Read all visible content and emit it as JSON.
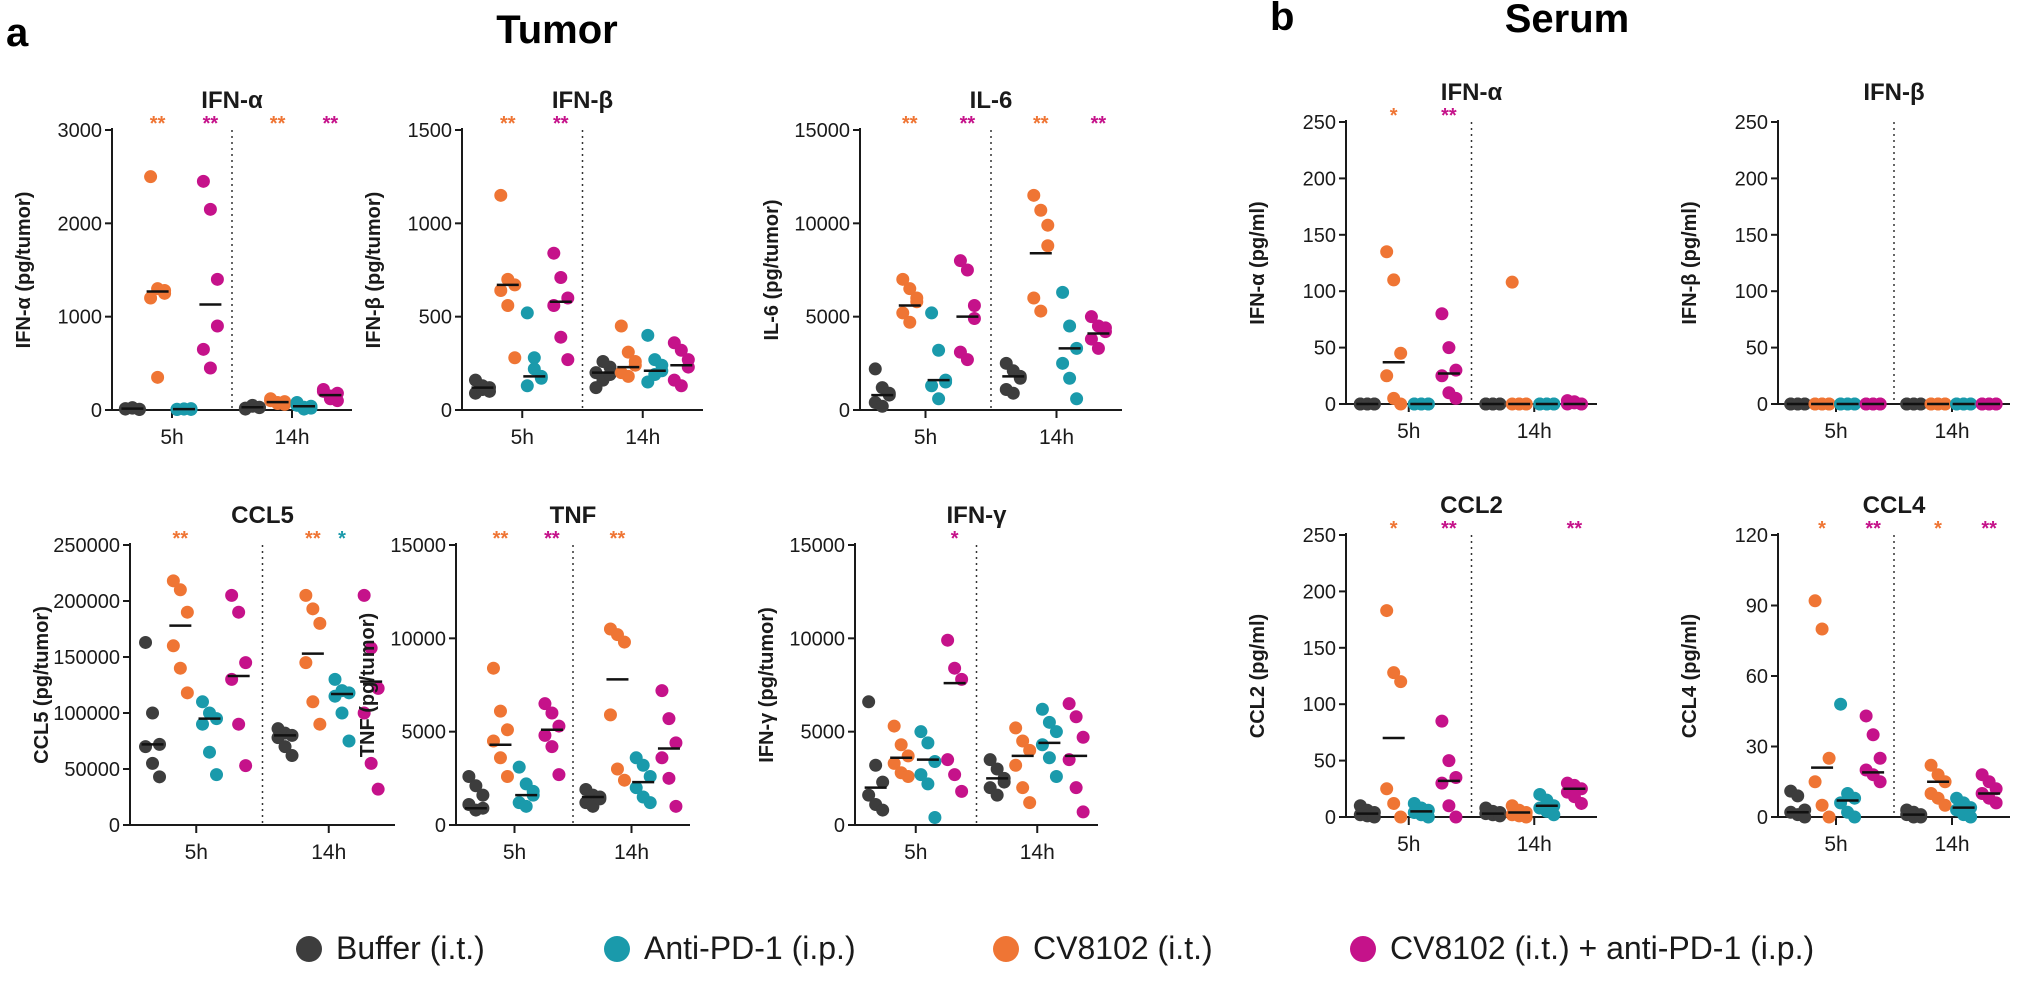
{
  "panel_letters": {
    "a": "a",
    "b": "b"
  },
  "section_titles": {
    "tumor": "Tumor",
    "serum": "Serum"
  },
  "groups": [
    {
      "key": "buffer",
      "name": "Buffer (i.t.)",
      "color": "#3d3d3d"
    },
    {
      "key": "antipd1",
      "name": "Anti-PD-1 (i.p.)",
      "color": "#1a9aab"
    },
    {
      "key": "cv8102",
      "name": "CV8102 (i.t.)",
      "color": "#ef7534"
    },
    {
      "key": "combo",
      "name": "CV8102 (i.t.) + anti-PD-1 (i.p.)",
      "color": "#c5128a"
    }
  ],
  "chart_data": [
    {
      "type": "scatter",
      "section": "Tumor",
      "title": "IFN-α",
      "ylabel": "IFN-α (pg/tumor)",
      "ylim": [
        0,
        3000
      ],
      "yticks": [
        "0",
        "1000",
        "2000",
        "3000"
      ],
      "xgroups": [
        "5h",
        "14h"
      ],
      "series": {
        "5h": {
          "buffer": [
            10,
            20,
            5,
            15,
            25,
            8
          ],
          "cv8102": [
            2500,
            1300,
            1250,
            1200,
            350,
            1280
          ],
          "antipd1": [
            5,
            10,
            15,
            8,
            12,
            6
          ],
          "combo": [
            2450,
            2150,
            900,
            650,
            450,
            1400
          ]
        },
        "14h": {
          "buffer": [
            20,
            40,
            30,
            10,
            50,
            25
          ],
          "cv8102": [
            100,
            80,
            60,
            120,
            70,
            90
          ],
          "antipd1": [
            50,
            30,
            20,
            80,
            10,
            40
          ],
          "combo": [
            200,
            150,
            100,
            220,
            120,
            180
          ]
        }
      },
      "means": {
        "5h": {
          "buffer": 15,
          "cv8102": 1270,
          "antipd1": 10,
          "combo": 1130
        },
        "14h": {
          "buffer": 30,
          "cv8102": 85,
          "antipd1": 40,
          "combo": 160
        }
      },
      "significance": {
        "5h": {
          "cv8102": "**",
          "combo": "**"
        },
        "14h": {
          "cv8102": "**",
          "combo": "**"
        }
      }
    },
    {
      "type": "scatter",
      "section": "Tumor",
      "title": "IFN-β",
      "ylabel": "IFN-β (pg/tumor)",
      "ylim": [
        0,
        1500
      ],
      "yticks": [
        "0",
        "500",
        "1000",
        "1500"
      ],
      "xgroups": [
        "5h",
        "14h"
      ],
      "series": {
        "5h": {
          "buffer": [
            90,
            110,
            120,
            160,
            130,
            100
          ],
          "cv8102": [
            1150,
            700,
            670,
            640,
            560,
            280
          ],
          "antipd1": [
            520,
            280,
            170,
            130,
            220,
            180
          ],
          "combo": [
            840,
            710,
            600,
            560,
            390,
            270
          ]
        },
        "14h": {
          "buffer": [
            200,
            160,
            230,
            120,
            260,
            190
          ],
          "cv8102": [
            450,
            310,
            240,
            200,
            180,
            260
          ],
          "antipd1": [
            400,
            270,
            210,
            150,
            190,
            240
          ],
          "combo": [
            360,
            320,
            230,
            160,
            130,
            270
          ]
        }
      },
      "means": {
        "5h": {
          "buffer": 120,
          "cv8102": 670,
          "antipd1": 180,
          "combo": 580
        },
        "14h": {
          "buffer": 200,
          "cv8102": 230,
          "antipd1": 210,
          "combo": 240
        }
      },
      "significance": {
        "5h": {
          "cv8102": "**",
          "combo": "**"
        },
        "14h": {}
      }
    },
    {
      "type": "scatter",
      "section": "Tumor",
      "title": "IL-6",
      "ylabel": "IL-6 (pg/tumor)",
      "ylim": [
        0,
        15000
      ],
      "yticks": [
        "0",
        "5000",
        "10000",
        "15000"
      ],
      "xgroups": [
        "5h",
        "14h"
      ],
      "series": {
        "5h": {
          "buffer": [
            2200,
            1200,
            800,
            400,
            200,
            900
          ],
          "cv8102": [
            7000,
            6500,
            5800,
            5200,
            4700,
            6000
          ],
          "antipd1": [
            5200,
            3200,
            1600,
            1300,
            600,
            1500
          ],
          "combo": [
            8000,
            7500,
            4900,
            3100,
            2700,
            5600
          ]
        },
        "14h": {
          "buffer": [
            2500,
            2100,
            1700,
            1100,
            900,
            1800
          ],
          "cv8102": [
            11500,
            10700,
            9900,
            6000,
            5300,
            8800
          ],
          "antipd1": [
            6300,
            4500,
            3300,
            2500,
            1700,
            600
          ],
          "combo": [
            5000,
            4500,
            4200,
            3800,
            3300,
            4400
          ]
        }
      },
      "means": {
        "5h": {
          "buffer": 800,
          "cv8102": 5600,
          "antipd1": 1600,
          "combo": 5000
        },
        "14h": {
          "buffer": 1800,
          "cv8102": 8400,
          "antipd1": 3300,
          "combo": 4100
        }
      },
      "significance": {
        "5h": {
          "cv8102": "**",
          "combo": "**"
        },
        "14h": {
          "cv8102": "**",
          "combo": "**"
        }
      }
    },
    {
      "type": "scatter",
      "section": "Tumor",
      "title": "CCL5",
      "ylabel": "CCL5 (pg/tumor)",
      "ylim": [
        0,
        250000
      ],
      "yticks": [
        "0",
        "50000",
        "100000",
        "150000",
        "200000",
        "250000"
      ],
      "xgroups": [
        "5h",
        "14h"
      ],
      "series": {
        "5h": {
          "buffer": [
            163000,
            100000,
            72000,
            70000,
            55000,
            43000
          ],
          "cv8102": [
            218000,
            210000,
            190000,
            160000,
            140000,
            118000
          ],
          "antipd1": [
            110000,
            100000,
            95000,
            90000,
            65000,
            45000
          ],
          "combo": [
            205000,
            190000,
            145000,
            130000,
            90000,
            53000
          ]
        },
        "14h": {
          "buffer": [
            86000,
            82000,
            80000,
            78000,
            70000,
            62000
          ],
          "cv8102": [
            205000,
            193000,
            180000,
            145000,
            110000,
            90000
          ],
          "antipd1": [
            130000,
            120000,
            118000,
            115000,
            100000,
            75000
          ],
          "combo": [
            205000,
            158000,
            122000,
            100000,
            55000,
            32000
          ]
        }
      },
      "means": {
        "5h": {
          "buffer": 72000,
          "cv8102": 178000,
          "antipd1": 95000,
          "combo": 133000
        },
        "14h": {
          "buffer": 80000,
          "cv8102": 153000,
          "antipd1": 117000,
          "combo": 128000
        }
      },
      "significance": {
        "5h": {
          "cv8102": "**"
        },
        "14h": {
          "cv8102": "**",
          "antipd1": "*"
        }
      }
    },
    {
      "type": "scatter",
      "section": "Tumor",
      "title": "TNF",
      "ylabel": "TNF (pg/tumor)",
      "ylim": [
        0,
        15000
      ],
      "yticks": [
        "0",
        "5000",
        "10000",
        "15000"
      ],
      "xgroups": [
        "5h",
        "14h"
      ],
      "series": {
        "5h": {
          "buffer": [
            2600,
            2100,
            1600,
            1100,
            800,
            900
          ],
          "cv8102": [
            8400,
            6100,
            5100,
            4500,
            3600,
            2600
          ],
          "antipd1": [
            3100,
            2200,
            1600,
            1200,
            1000,
            1800
          ],
          "combo": [
            6500,
            6000,
            5300,
            4800,
            4200,
            2700
          ]
        },
        "14h": {
          "buffer": [
            1900,
            1600,
            1500,
            1200,
            1000,
            1400
          ],
          "cv8102": [
            10500,
            10200,
            9800,
            5900,
            3000,
            2400
          ],
          "antipd1": [
            3600,
            3200,
            2600,
            2000,
            1500,
            1200
          ],
          "combo": [
            7200,
            5700,
            4400,
            3600,
            2500,
            1000
          ]
        }
      },
      "means": {
        "5h": {
          "buffer": 900,
          "cv8102": 4300,
          "antipd1": 1600,
          "combo": 5100
        },
        "14h": {
          "buffer": 1500,
          "cv8102": 7800,
          "antipd1": 2300,
          "combo": 4100
        }
      },
      "significance": {
        "5h": {
          "cv8102": "**",
          "combo": "**"
        },
        "14h": {
          "cv8102": "**"
        }
      }
    },
    {
      "type": "scatter",
      "section": "Tumor",
      "title": "IFN-γ",
      "ylabel": "IFN-γ (pg/tumor)",
      "ylim": [
        0,
        15000
      ],
      "yticks": [
        "0",
        "5000",
        "10000",
        "15000"
      ],
      "xgroups": [
        "5h",
        "14h"
      ],
      "series": {
        "5h": {
          "buffer": [
            6600,
            3200,
            2300,
            1600,
            1100,
            800
          ],
          "cv8102": [
            5300,
            4300,
            3700,
            3300,
            2800,
            2600
          ],
          "antipd1": [
            5000,
            4400,
            3400,
            2700,
            2200,
            400
          ],
          "combo": [
            9900,
            8400,
            7800,
            3500,
            2700,
            1800
          ]
        },
        "14h": {
          "buffer": [
            3500,
            3000,
            2500,
            2000,
            1600,
            2300
          ],
          "cv8102": [
            5200,
            4500,
            4000,
            3200,
            2000,
            1200
          ],
          "antipd1": [
            6200,
            5500,
            5000,
            4300,
            3600,
            2600
          ],
          "combo": [
            6500,
            5800,
            4700,
            3500,
            2000,
            700
          ]
        }
      },
      "means": {
        "5h": {
          "buffer": 2000,
          "cv8102": 3600,
          "antipd1": 3500,
          "combo": 7600
        },
        "14h": {
          "buffer": 2500,
          "cv8102": 3700,
          "antipd1": 4400,
          "combo": 3700
        }
      },
      "significance": {
        "5h": {
          "combo": "*"
        },
        "14h": {}
      }
    },
    {
      "type": "scatter",
      "section": "Serum",
      "title": "IFN-α",
      "ylabel": "IFN-α (pg/ml)",
      "ylim": [
        0,
        250
      ],
      "yticks": [
        "0",
        "50",
        "100",
        "150",
        "200",
        "250"
      ],
      "xgroups": [
        "5h",
        "14h"
      ],
      "series": {
        "5h": {
          "buffer": [
            0,
            0,
            0,
            0,
            0,
            0
          ],
          "cv8102": [
            135,
            110,
            45,
            25,
            5,
            0
          ],
          "antipd1": [
            0,
            0,
            0,
            0,
            0,
            0
          ],
          "combo": [
            80,
            50,
            30,
            25,
            10,
            5
          ]
        },
        "14h": {
          "buffer": [
            0,
            0,
            0,
            0,
            0,
            0
          ],
          "cv8102": [
            108,
            0,
            0,
            0,
            0,
            0
          ],
          "antipd1": [
            0,
            0,
            0,
            0,
            0,
            0
          ],
          "combo": [
            3,
            1,
            0,
            0,
            2,
            0
          ]
        }
      },
      "means": {
        "5h": {
          "buffer": 0,
          "cv8102": 37,
          "antipd1": 0,
          "combo": 27
        },
        "14h": {
          "buffer": 0,
          "cv8102": 0,
          "antipd1": 0,
          "combo": 0
        }
      },
      "significance": {
        "5h": {
          "cv8102": "*",
          "combo": "**"
        },
        "14h": {}
      }
    },
    {
      "type": "scatter",
      "section": "Serum",
      "title": "IFN-β",
      "ylabel": "IFN-β (pg/ml)",
      "ylim": [
        0,
        250
      ],
      "yticks": [
        "0",
        "50",
        "100",
        "150",
        "200",
        "250"
      ],
      "xgroups": [
        "5h",
        "14h"
      ],
      "series": {
        "5h": {
          "buffer": [
            0,
            0,
            0,
            0,
            0,
            0
          ],
          "cv8102": [
            0,
            0,
            0,
            0,
            0,
            0
          ],
          "antipd1": [
            0,
            0,
            0,
            0,
            0,
            0
          ],
          "combo": [
            0,
            0,
            0,
            0,
            0,
            0
          ]
        },
        "14h": {
          "buffer": [
            0,
            0,
            0,
            0,
            0,
            0
          ],
          "cv8102": [
            0,
            0,
            0,
            0,
            0,
            0
          ],
          "antipd1": [
            0,
            0,
            0,
            0,
            0,
            0
          ],
          "combo": [
            0,
            0,
            0,
            0,
            0,
            0
          ]
        }
      },
      "means": {
        "5h": {
          "buffer": 0,
          "cv8102": 0,
          "antipd1": 0,
          "combo": 0
        },
        "14h": {
          "buffer": 0,
          "cv8102": 0,
          "antipd1": 0,
          "combo": 0
        }
      },
      "significance": {
        "5h": {},
        "14h": {}
      }
    },
    {
      "type": "scatter",
      "section": "Serum",
      "title": "CCL2",
      "ylabel": "CCL2 (pg/ml)",
      "ylim": [
        0,
        250
      ],
      "yticks": [
        "0",
        "50",
        "100",
        "150",
        "200",
        "250"
      ],
      "xgroups": [
        "5h",
        "14h"
      ],
      "series": {
        "5h": {
          "buffer": [
            10,
            6,
            4,
            2,
            1,
            0
          ],
          "cv8102": [
            183,
            128,
            120,
            25,
            12,
            0
          ],
          "antipd1": [
            12,
            8,
            6,
            4,
            2,
            0
          ],
          "combo": [
            85,
            50,
            35,
            30,
            10,
            0
          ]
        },
        "14h": {
          "buffer": [
            8,
            5,
            4,
            3,
            2,
            1
          ],
          "cv8102": [
            10,
            6,
            4,
            2,
            1,
            0
          ],
          "antipd1": [
            20,
            15,
            10,
            8,
            5,
            2
          ],
          "combo": [
            30,
            28,
            25,
            22,
            18,
            12
          ]
        }
      },
      "means": {
        "5h": {
          "buffer": 3,
          "cv8102": 70,
          "antipd1": 5,
          "combo": 32
        },
        "14h": {
          "buffer": 3,
          "cv8102": 4,
          "antipd1": 10,
          "combo": 25
        }
      },
      "significance": {
        "5h": {
          "cv8102": "*",
          "combo": "**"
        },
        "14h": {
          "combo": "**"
        }
      }
    },
    {
      "type": "scatter",
      "section": "Serum",
      "title": "CCL4",
      "ylabel": "CCL4 (pg/ml)",
      "ylim": [
        0,
        120
      ],
      "yticks": [
        "0",
        "30",
        "60",
        "90",
        "120"
      ],
      "xgroups": [
        "5h",
        "14h"
      ],
      "series": {
        "5h": {
          "buffer": [
            11,
            9,
            3,
            2,
            1,
            0
          ],
          "cv8102": [
            92,
            80,
            25,
            15,
            5,
            0
          ],
          "antipd1": [
            48,
            10,
            8,
            6,
            2,
            0
          ],
          "combo": [
            43,
            35,
            25,
            20,
            18,
            15
          ]
        },
        "14h": {
          "buffer": [
            3,
            2,
            1,
            1,
            0,
            0
          ],
          "cv8102": [
            22,
            18,
            15,
            10,
            8,
            5
          ],
          "antipd1": [
            8,
            6,
            4,
            3,
            1,
            0
          ],
          "combo": [
            18,
            15,
            12,
            10,
            8,
            6
          ]
        }
      },
      "means": {
        "5h": {
          "buffer": 2,
          "cv8102": 21,
          "antipd1": 7,
          "combo": 19
        },
        "14h": {
          "buffer": 1,
          "cv8102": 15,
          "antipd1": 4,
          "combo": 10
        }
      },
      "significance": {
        "5h": {
          "cv8102": "*",
          "combo": "**"
        },
        "14h": {
          "cv8102": "*",
          "combo": "**"
        }
      }
    }
  ]
}
